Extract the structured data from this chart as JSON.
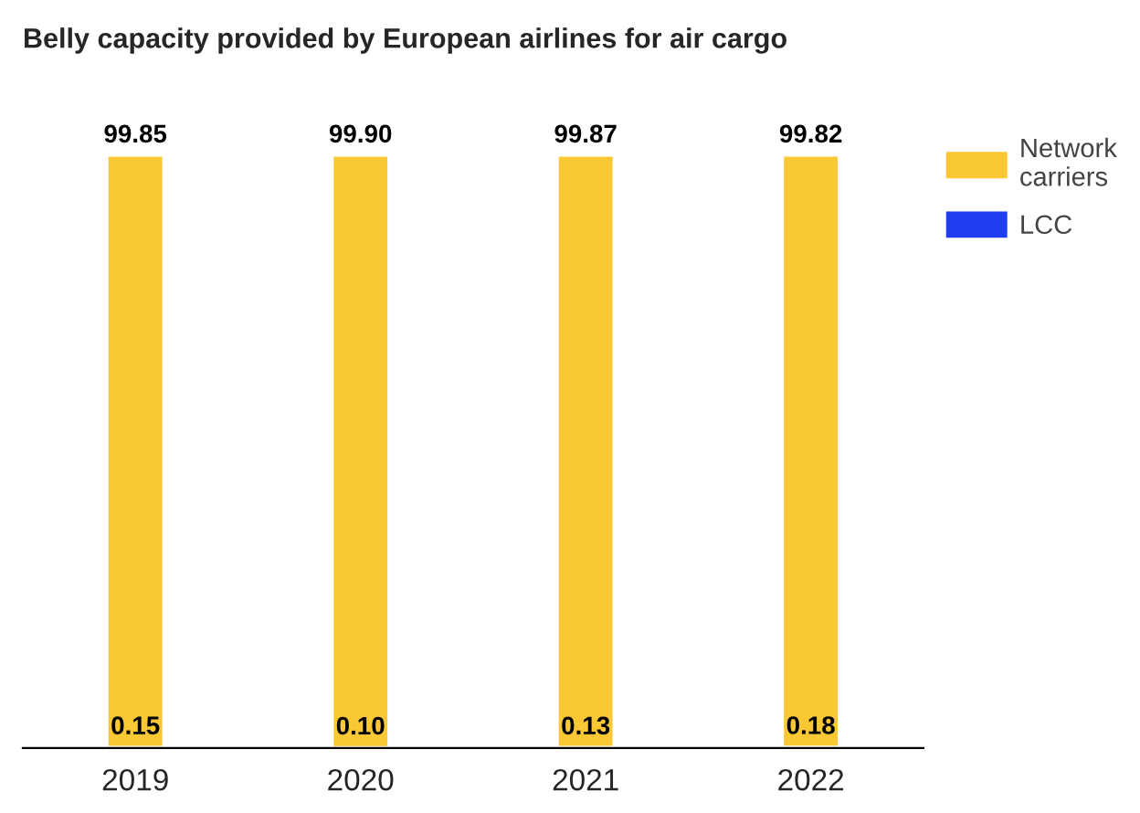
{
  "chart_data": {
    "type": "bar",
    "title": "Belly capacity provided by European airlines for air cargo",
    "categories": [
      "2019",
      "2020",
      "2021",
      "2022"
    ],
    "stacked": true,
    "tick_labels": "x",
    "legend": "top right",
    "grid": false,
    "series": [
      {
        "name": "LCC",
        "color": "#1f3cf0",
        "values": [
          0.15,
          0.1,
          0.13,
          0.18
        ],
        "value_labels": [
          "0.15",
          "0.10",
          "0.13",
          "0.18"
        ]
      },
      {
        "name": "Network carriers",
        "color": "#f9c834",
        "values": [
          99.85,
          99.9,
          99.87,
          99.82
        ],
        "value_labels": [
          "99.85",
          "99.90",
          "99.87",
          "99.82"
        ]
      }
    ]
  }
}
